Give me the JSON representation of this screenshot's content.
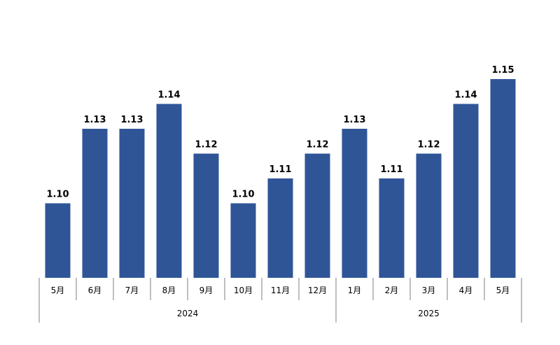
{
  "chart_data": {
    "type": "bar",
    "categories": [
      "5月",
      "6月",
      "7月",
      "8月",
      "9月",
      "10月",
      "11月",
      "12月",
      "1月",
      "2月",
      "3月",
      "4月",
      "5月"
    ],
    "values": [
      1.1,
      1.13,
      1.13,
      1.14,
      1.12,
      1.1,
      1.11,
      1.12,
      1.13,
      1.11,
      1.12,
      1.14,
      1.15
    ],
    "value_labels": [
      "1.10",
      "1.13",
      "1.13",
      "1.14",
      "1.12",
      "1.10",
      "1.11",
      "1.12",
      "1.13",
      "1.11",
      "1.12",
      "1.14",
      "1.15"
    ],
    "groups": [
      {
        "label": "2024",
        "count": 8
      },
      {
        "label": "2025",
        "count": 5
      }
    ],
    "ylim": [
      1.07,
      1.15
    ],
    "bar_color": "#2f5597",
    "grid": false,
    "legend": "none"
  }
}
